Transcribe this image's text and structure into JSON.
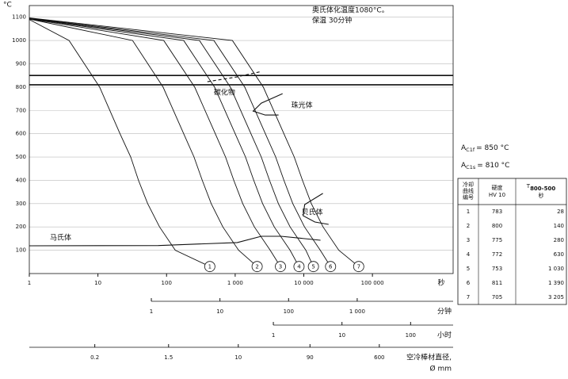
{
  "chart_data": {
    "type": "line",
    "y_unit": "°C",
    "x_unit": "秒",
    "log_x": true,
    "grid": true,
    "xlim": [
      1,
      1500000
    ],
    "ylim": [
      0,
      1150
    ],
    "yticks": [
      100,
      200,
      300,
      400,
      500,
      600,
      700,
      800,
      900,
      1000,
      1100
    ],
    "xticks": [
      1,
      10,
      100,
      {
        "value": 1000,
        "label": "1 000"
      },
      {
        "value": 10000,
        "label": "10 000"
      },
      {
        "value": 100000,
        "label": "100 000"
      }
    ],
    "secondary_x_axes": [
      {
        "unit": [
          "分钟"
        ],
        "ticks": [
          {
            "value": 60,
            "label": "1"
          },
          {
            "value": 600,
            "label": "10"
          },
          {
            "value": 6000,
            "label": "100"
          },
          {
            "value": 60000,
            "label": "1 000"
          }
        ]
      },
      {
        "unit": [
          "小时"
        ],
        "ticks": [
          {
            "value": 3600,
            "label": "1"
          },
          {
            "value": 36000,
            "label": "10"
          },
          {
            "value": 360000,
            "label": "100"
          }
        ]
      },
      {
        "unit": [
          "空冷棒材直径,",
          "Ø mm"
        ],
        "ticks": [
          {
            "value": 9,
            "label": "0.2"
          },
          {
            "value": 107,
            "label": "1.5"
          },
          {
            "value": 1110,
            "label": "10"
          },
          {
            "value": 12300,
            "label": "90"
          },
          {
            "value": 126000,
            "label": "600"
          }
        ]
      }
    ],
    "annotation": [
      "奥氏体化温度1080°C。",
      "保温 30分钟"
    ],
    "color": "#111111",
    "series": [
      {
        "name": "1",
        "x": [
          1,
          3.8,
          10.6,
          21,
          30,
          39,
          53,
          79,
          134,
          427
        ],
        "values": [
          1090,
          1000,
          800,
          600,
          500,
          400,
          300,
          200,
          100,
          30
        ]
      },
      {
        "name": "2",
        "x": [
          1,
          32,
          89,
          178,
          251,
          331,
          447,
          661,
          1122,
          2089
        ],
        "values": [
          1092,
          1000,
          800,
          600,
          500,
          400,
          300,
          200,
          100,
          30
        ]
      },
      {
        "name": "3",
        "x": [
          1,
          91,
          257,
          513,
          724,
          955,
          1288,
          1905,
          3236,
          4571
        ],
        "values": [
          1093,
          1000,
          800,
          600,
          500,
          400,
          300,
          200,
          100,
          30
        ]
      },
      {
        "name": "4",
        "x": [
          1,
          178,
          501,
          1000,
          1413,
          1862,
          2512,
          3715,
          6310,
          8511
        ],
        "values": [
          1094,
          1000,
          800,
          600,
          500,
          400,
          300,
          200,
          100,
          30
        ]
      },
      {
        "name": "5",
        "x": [
          1,
          302,
          851,
          1698,
          2399,
          3162,
          4266,
          6310,
          10715,
          13804
        ],
        "values": [
          1095,
          1000,
          800,
          600,
          500,
          400,
          300,
          200,
          100,
          30
        ]
      },
      {
        "name": "6",
        "x": [
          1,
          490,
          1380,
          2754,
          3890,
          5129,
          6918,
          10233,
          17378,
          24547
        ],
        "values": [
          1096,
          1000,
          800,
          600,
          500,
          400,
          300,
          200,
          100,
          30
        ]
      },
      {
        "name": "7",
        "x": [
          1,
          912,
          2570,
          5129,
          7244,
          9550,
          12882,
          19055,
          32359,
          63096
        ],
        "values": [
          1097,
          1000,
          800,
          600,
          500,
          400,
          300,
          200,
          100,
          30
        ]
      }
    ],
    "phase_lines": [
      {
        "name": "马氏体",
        "x": [
          1,
          76,
          1072,
          2400,
          4660,
          17500
        ],
        "values": [
          119,
          120,
          133,
          160,
          160,
          143
        ]
      },
      {
        "name": "贝氏体",
        "x": [
          19000,
          10300,
          9800,
          14500,
          23000
        ],
        "values": [
          344,
          296,
          248,
          221,
          211
        ]
      },
      {
        "name": "珠光体",
        "x": [
          4900,
          2400,
          1830,
          2740,
          4280
        ],
        "values": [
          772,
          731,
          697,
          680,
          680
        ]
      },
      {
        "name": "碳化物",
        "x": [
          394,
          1072,
          2400
        ],
        "values": [
          823,
          844,
          867
        ],
        "style": "dashed"
      }
    ],
    "reference_lines": [
      {
        "prefix": "A",
        "sub": "C1f",
        "text": "= 850 °C",
        "value": 850
      },
      {
        "prefix": "A",
        "sub": "C1s",
        "text": "= 810 °C",
        "value": 810
      }
    ]
  },
  "table": {
    "header": [
      [
        "冷却",
        "曲线",
        "编号"
      ],
      [
        "硬度",
        "HV 10"
      ],
      {
        "main": "T",
        "sub": "800-500",
        "line2": "秒"
      }
    ],
    "rows": [
      [
        "1",
        "783",
        "28"
      ],
      [
        "2",
        "800",
        "140"
      ],
      [
        "3",
        "775",
        "280"
      ],
      [
        "4",
        "772",
        "630"
      ],
      [
        "5",
        "753",
        "1 030"
      ],
      [
        "6",
        "811",
        "1 390"
      ],
      [
        "7",
        "705",
        "3 205"
      ]
    ]
  }
}
